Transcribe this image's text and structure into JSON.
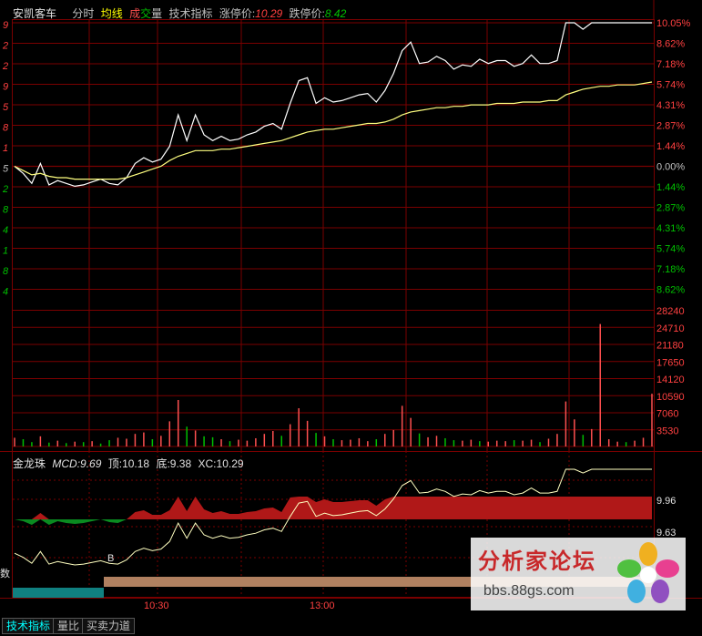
{
  "header": {
    "stock_name": "安凯客车",
    "items": [
      "分时",
      "均线",
      "成",
      "交",
      "量",
      "技术指标"
    ],
    "limit_up_label": "涨停价:",
    "limit_up_value": "10.29",
    "limit_down_label": "跌停价:",
    "limit_down_value": "8.42",
    "colors": {
      "fenshi": "#c0c0c0",
      "junxian": "#ffff00",
      "cheng": "#ff5050",
      "jiao": "#ff5050",
      "liang": "#c0c0c0",
      "jishu": "#c0c0c0",
      "up_value": "#ff4040",
      "down_value": "#00c000"
    }
  },
  "price_panel": {
    "right_labels": [
      "10.05%",
      "8.62%",
      "7.18%",
      "5.74%",
      "4.31%",
      "2.87%",
      "1.44%",
      "0.00%",
      "1.44%",
      "2.87%",
      "4.31%",
      "5.74%",
      "7.18%",
      "8.62%"
    ],
    "left_labels": [
      "9",
      "2",
      "2",
      "9",
      "5",
      "8",
      "1",
      "5",
      "2",
      "8",
      "4",
      "1",
      "8",
      "4"
    ]
  },
  "volume_panel": {
    "right_labels": [
      "28240",
      "24710",
      "21180",
      "17650",
      "14120",
      "10590",
      "7060",
      "3530"
    ]
  },
  "indicator": {
    "name": "金龙珠",
    "mcd_label": "MCD:",
    "mcd_value": "9.69",
    "top_label": "顶:",
    "top_value": "10.18",
    "bottom_label": "底:",
    "bottom_value": "9.38",
    "xc_label": "XC:",
    "xc_value": "10.29",
    "right_labels": [
      "9.96",
      "9.63"
    ],
    "marker_b": "B",
    "left_char": "数"
  },
  "time_axis": [
    "10:30",
    "13:00"
  ],
  "tabs": [
    "技术指标",
    "量比",
    "买卖力道"
  ],
  "watermark": {
    "title": "分析家论坛",
    "url": "bbs.88gs.com"
  },
  "chart_data": {
    "type": "line",
    "series": [
      {
        "values": [
          0.0,
          -0.5,
          -1.2,
          0.2,
          -1.3,
          -1.0,
          -1.2,
          -1.4,
          -1.3,
          -1.1,
          -0.9,
          -1.2,
          -1.3,
          -0.8,
          0.2,
          0.6,
          0.3,
          0.5,
          1.4,
          3.6,
          1.8,
          3.6,
          2.2,
          1.8,
          2.1,
          1.8,
          1.9,
          2.2,
          2.4,
          2.8,
          3.0,
          2.6,
          4.4,
          6.0,
          6.2,
          4.4,
          4.8,
          4.5,
          4.6,
          4.8,
          5.0,
          5.1,
          4.5,
          5.3,
          6.5,
          8.1,
          8.7,
          7.2,
          7.3,
          7.7,
          7.4,
          6.8,
          7.1,
          7.0,
          7.5,
          7.2,
          7.4,
          7.4,
          7.0,
          7.2,
          7.8,
          7.2,
          7.2,
          7.4,
          10.05,
          10.05,
          9.6,
          10.05,
          10.05,
          10.05,
          10.05,
          10.05,
          10.05,
          10.05,
          10.05
        ]
      },
      {
        "values": [
          0.0,
          -0.3,
          -0.6,
          -0.5,
          -0.7,
          -0.8,
          -0.8,
          -0.9,
          -0.9,
          -0.9,
          -0.9,
          -0.9,
          -0.9,
          -0.8,
          -0.6,
          -0.4,
          -0.2,
          0.0,
          0.4,
          0.7,
          0.9,
          1.1,
          1.1,
          1.1,
          1.2,
          1.2,
          1.3,
          1.4,
          1.5,
          1.6,
          1.7,
          1.8,
          2.0,
          2.2,
          2.4,
          2.5,
          2.6,
          2.6,
          2.7,
          2.8,
          2.9,
          3.0,
          3.0,
          3.1,
          3.3,
          3.6,
          3.8,
          3.9,
          4.0,
          4.1,
          4.1,
          4.2,
          4.2,
          4.3,
          4.3,
          4.3,
          4.4,
          4.4,
          4.4,
          4.5,
          4.5,
          4.5,
          4.6,
          4.6,
          5.0,
          5.2,
          5.4,
          5.5,
          5.6,
          5.6,
          5.7,
          5.7,
          5.7,
          5.8,
          5.9
        ]
      }
    ],
    "volume": [
      1800,
      1500,
      900,
      2100,
      800,
      1200,
      700,
      1000,
      900,
      1100,
      600,
      1300,
      1800,
      1600,
      2600,
      2900,
      1500,
      2200,
      5200,
      9600,
      4100,
      3300,
      2100,
      1900,
      1500,
      1100,
      1400,
      1200,
      1700,
      2600,
      3200,
      2200,
      4600,
      7900,
      5300,
      2800,
      2100,
      1500,
      1300,
      1400,
      1700,
      1100,
      1500,
      2600,
      3400,
      8400,
      5900,
      2700,
      1900,
      2200,
      1700,
      1300,
      1200,
      1400,
      1100,
      1000,
      1200,
      1100,
      1300,
      1200,
      1400,
      900,
      1600,
      2600,
      9300,
      5600,
      2400,
      3600,
      25300,
      1500,
      1000,
      900,
      1200,
      1800,
      10900
    ],
    "volume_up": [
      1,
      0,
      0,
      1,
      0,
      1,
      0,
      1,
      0,
      1,
      0,
      0,
      1,
      1,
      1,
      1,
      0,
      1,
      1,
      1,
      0,
      1,
      0,
      0,
      1,
      0,
      1,
      1,
      1,
      1,
      1,
      0,
      1,
      1,
      1,
      0,
      1,
      0,
      1,
      1,
      1,
      1,
      0,
      1,
      1,
      1,
      1,
      0,
      1,
      1,
      0,
      0,
      1,
      1,
      0,
      1,
      1,
      1,
      0,
      1,
      1,
      0,
      1,
      1,
      1,
      1,
      0,
      1,
      1,
      1,
      1,
      0,
      1,
      1,
      1
    ],
    "ylim": [
      -8.62,
      10.05
    ],
    "volume_ylim": [
      0,
      28240
    ]
  }
}
